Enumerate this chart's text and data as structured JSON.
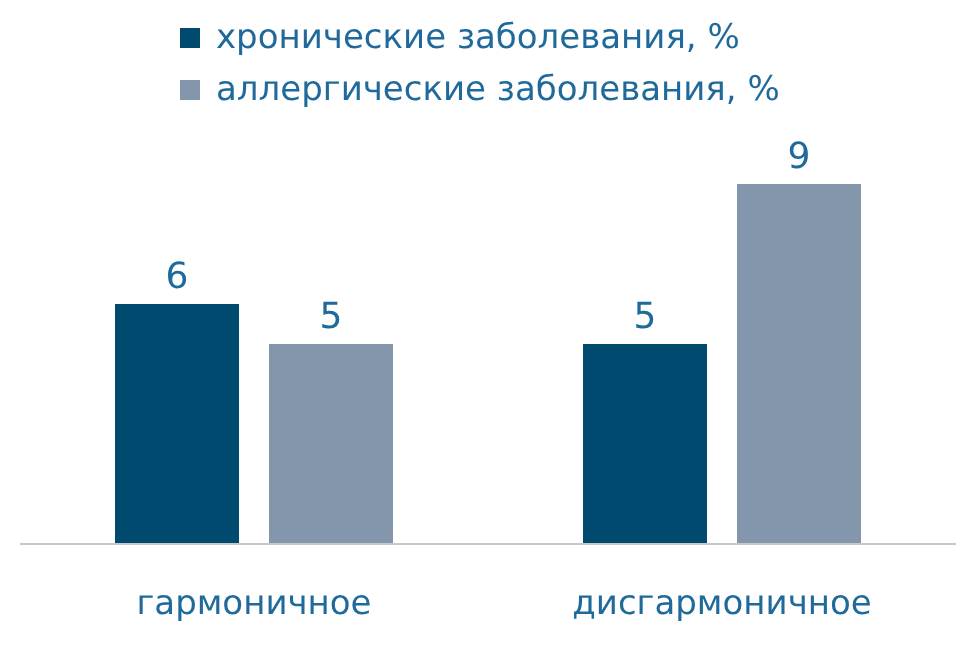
{
  "chart_data": {
    "type": "bar",
    "categories": [
      "гармоничное",
      "дисгармоничное"
    ],
    "series": [
      {
        "name": "хронические заболевания, %",
        "color": "#004a6f",
        "values": [
          6,
          5
        ]
      },
      {
        "name": "аллергические заболевания, %",
        "color": "#8496ab",
        "values": [
          5,
          9
        ]
      }
    ],
    "data_labels": true,
    "legend": "top"
  }
}
